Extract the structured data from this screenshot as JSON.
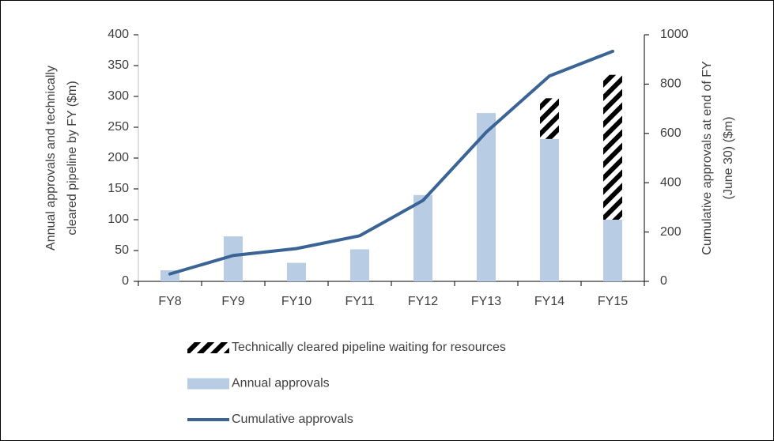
{
  "chart_data": {
    "type": "bar",
    "categories": [
      "FY8",
      "FY9",
      "FY10",
      "FY11",
      "FY12",
      "FY13",
      "FY14",
      "FY15"
    ],
    "series": [
      {
        "name": "Annual approvals",
        "color": "#b8cce4",
        "values": [
          18,
          73,
          30,
          52,
          140,
          273,
          231,
          100
        ]
      },
      {
        "name": "Technically cleared pipeline waiting for resources",
        "color": "#000000",
        "pattern": "hatch",
        "stacked": true,
        "values": [
          null,
          null,
          null,
          null,
          null,
          null,
          66,
          235
        ]
      },
      {
        "name": "Cumulative approvals",
        "color": "#3a6396",
        "type": "line",
        "axis": "y2",
        "values": [
          30,
          105,
          133,
          185,
          328,
          605,
          833,
          933
        ]
      }
    ],
    "ylabel": [
      "Annual approvals and technically",
      "cleared pipeline by FY ($m)"
    ],
    "y2label": [
      "Cumulative approvals at end of FY",
      "(June 30) ($m)"
    ],
    "ylim": [
      0,
      400
    ],
    "yticks": [
      0,
      50,
      100,
      150,
      200,
      250,
      300,
      350,
      400
    ],
    "y2lim": [
      0,
      1000
    ],
    "y2ticks": [
      0,
      200,
      400,
      600,
      800,
      1000
    ],
    "legend_order": [
      1,
      0,
      2
    ],
    "legend": "bottom"
  }
}
